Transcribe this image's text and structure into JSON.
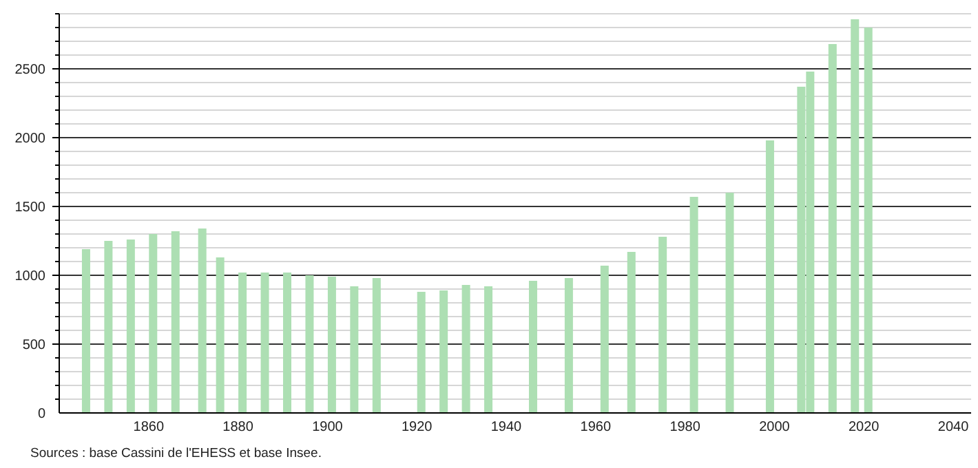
{
  "chart_data": {
    "type": "bar",
    "x": [
      1846,
      1851,
      1856,
      1861,
      1866,
      1872,
      1876,
      1881,
      1886,
      1891,
      1896,
      1901,
      1906,
      1911,
      1921,
      1926,
      1931,
      1936,
      1946,
      1954,
      1962,
      1968,
      1975,
      1982,
      1990,
      1999,
      2006,
      2008,
      2013,
      2018,
      2021
    ],
    "values": [
      1190,
      1250,
      1260,
      1300,
      1320,
      1340,
      1130,
      1020,
      1020,
      1020,
      1000,
      990,
      920,
      980,
      880,
      890,
      930,
      920,
      960,
      980,
      1070,
      1170,
      1280,
      1570,
      1600,
      1980,
      2370,
      2480,
      2680,
      2860,
      2800
    ],
    "color": "#addfb3",
    "xlim": [
      1840,
      2044
    ],
    "xticks": [
      1860,
      1880,
      1900,
      1920,
      1940,
      1960,
      1980,
      2000,
      2020,
      2040
    ],
    "ylim": [
      0,
      2900
    ],
    "yticks": [
      0,
      {
        "value": 100,
        "label": null
      },
      {
        "value": 200,
        "label": null
      },
      {
        "value": 300,
        "label": null
      },
      {
        "value": 400,
        "label": null
      },
      500,
      {
        "value": 600,
        "label": null
      },
      {
        "value": 700,
        "label": null
      },
      {
        "value": 800,
        "label": null
      },
      {
        "value": 900,
        "label": null
      },
      1000,
      {
        "value": 1100,
        "label": null
      },
      {
        "value": 1200,
        "label": null
      },
      {
        "value": 1300,
        "label": null
      },
      {
        "value": 1400,
        "label": null
      },
      1500,
      {
        "value": 1600,
        "label": null
      },
      {
        "value": 1700,
        "label": null
      },
      {
        "value": 1800,
        "label": null
      },
      {
        "value": 1900,
        "label": null
      },
      2000,
      {
        "value": 2100,
        "label": null
      },
      {
        "value": 2200,
        "label": null
      },
      {
        "value": 2300,
        "label": null
      },
      {
        "value": 2400,
        "label": null
      },
      2500,
      {
        "value": 2600,
        "label": null
      },
      {
        "value": 2700,
        "label": null
      },
      {
        "value": 2800,
        "label": null
      },
      {
        "value": 2900,
        "label": null
      }
    ],
    "grid": true,
    "annotations": [
      "Sources : base Cassini de l'EHESS et base Insee."
    ]
  }
}
